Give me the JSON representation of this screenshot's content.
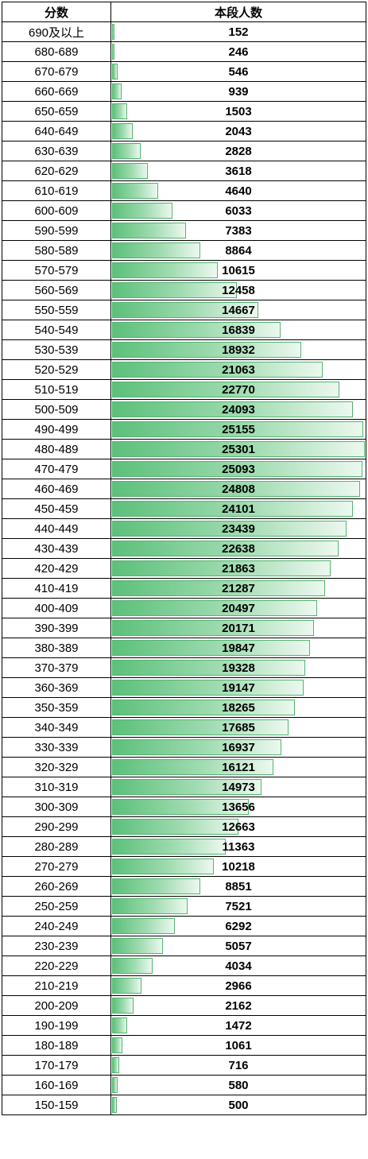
{
  "header": {
    "score_label": "分数",
    "count_label": "本段人数"
  },
  "colors": {
    "bar_start": "#5cc07a",
    "bar_end": "#ecf8ef",
    "bar_border": "#54b56f"
  },
  "chart_data": {
    "type": "table",
    "bar_max": 25301,
    "columns": [
      "分数",
      "本段人数"
    ],
    "rows": [
      {
        "range": "690及以上",
        "count": 152
      },
      {
        "range": "680-689",
        "count": 246
      },
      {
        "range": "670-679",
        "count": 546
      },
      {
        "range": "660-669",
        "count": 939
      },
      {
        "range": "650-659",
        "count": 1503
      },
      {
        "range": "640-649",
        "count": 2043
      },
      {
        "range": "630-639",
        "count": 2828
      },
      {
        "range": "620-629",
        "count": 3618
      },
      {
        "range": "610-619",
        "count": 4640
      },
      {
        "range": "600-609",
        "count": 6033
      },
      {
        "range": "590-599",
        "count": 7383
      },
      {
        "range": "580-589",
        "count": 8864
      },
      {
        "range": "570-579",
        "count": 10615
      },
      {
        "range": "560-569",
        "count": 12458
      },
      {
        "range": "550-559",
        "count": 14667
      },
      {
        "range": "540-549",
        "count": 16839
      },
      {
        "range": "530-539",
        "count": 18932
      },
      {
        "range": "520-529",
        "count": 21063
      },
      {
        "range": "510-519",
        "count": 22770
      },
      {
        "range": "500-509",
        "count": 24093
      },
      {
        "range": "490-499",
        "count": 25155
      },
      {
        "range": "480-489",
        "count": 25301
      },
      {
        "range": "470-479",
        "count": 25093
      },
      {
        "range": "460-469",
        "count": 24808
      },
      {
        "range": "450-459",
        "count": 24101
      },
      {
        "range": "440-449",
        "count": 23439
      },
      {
        "range": "430-439",
        "count": 22638
      },
      {
        "range": "420-429",
        "count": 21863
      },
      {
        "range": "410-419",
        "count": 21287
      },
      {
        "range": "400-409",
        "count": 20497
      },
      {
        "range": "390-399",
        "count": 20171
      },
      {
        "range": "380-389",
        "count": 19847
      },
      {
        "range": "370-379",
        "count": 19328
      },
      {
        "range": "360-369",
        "count": 19147
      },
      {
        "range": "350-359",
        "count": 18265
      },
      {
        "range": "340-349",
        "count": 17685
      },
      {
        "range": "330-339",
        "count": 16937
      },
      {
        "range": "320-329",
        "count": 16121
      },
      {
        "range": "310-319",
        "count": 14973
      },
      {
        "range": "300-309",
        "count": 13656
      },
      {
        "range": "290-299",
        "count": 12663
      },
      {
        "range": "280-289",
        "count": 11363
      },
      {
        "range": "270-279",
        "count": 10218
      },
      {
        "range": "260-269",
        "count": 8851
      },
      {
        "range": "250-259",
        "count": 7521
      },
      {
        "range": "240-249",
        "count": 6292
      },
      {
        "range": "230-239",
        "count": 5057
      },
      {
        "range": "220-229",
        "count": 4034
      },
      {
        "range": "210-219",
        "count": 2966
      },
      {
        "range": "200-209",
        "count": 2162
      },
      {
        "range": "190-199",
        "count": 1472
      },
      {
        "range": "180-189",
        "count": 1061
      },
      {
        "range": "170-179",
        "count": 716
      },
      {
        "range": "160-169",
        "count": 580
      },
      {
        "range": "150-159",
        "count": 500
      }
    ]
  }
}
